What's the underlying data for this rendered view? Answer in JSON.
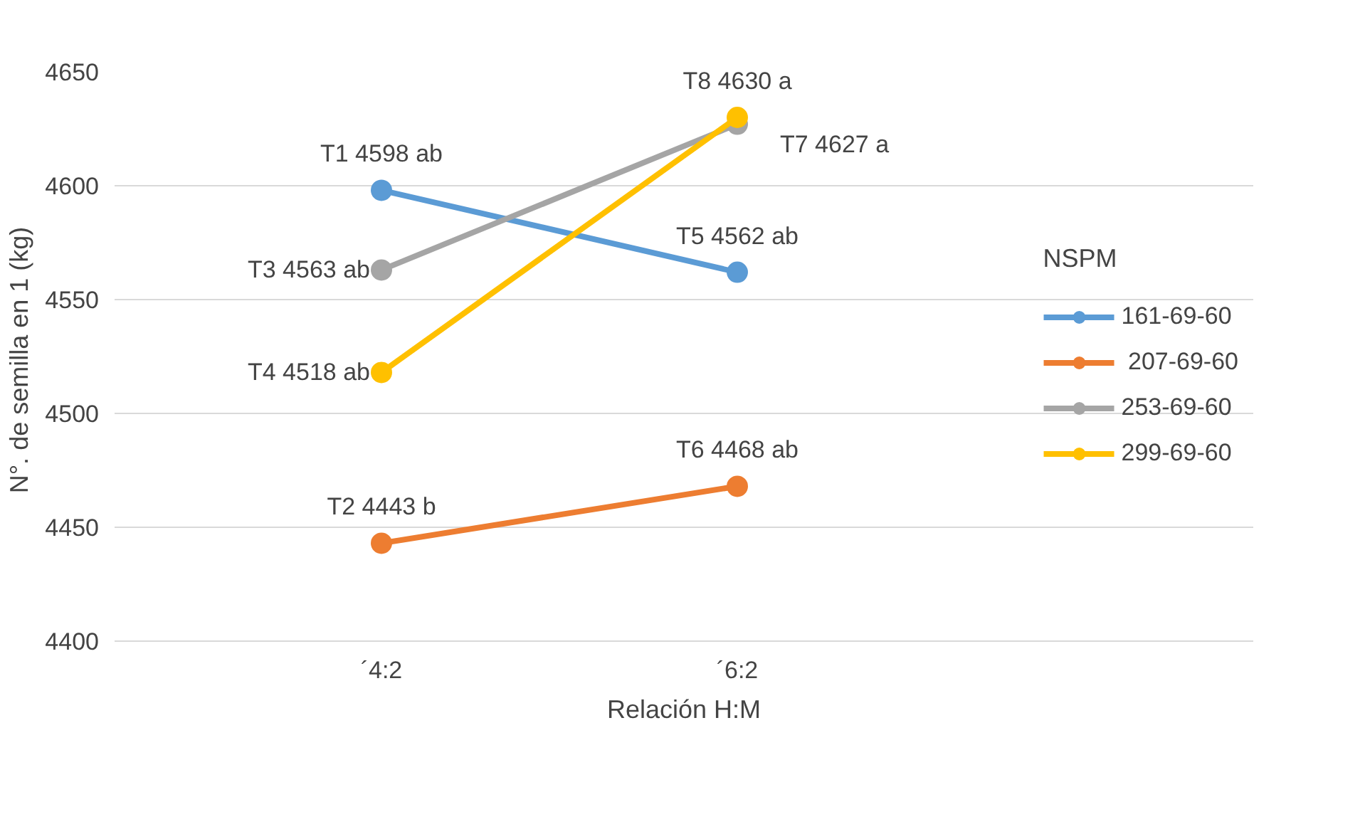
{
  "chart_data": {
    "type": "line",
    "xlabel": "Relación H:M",
    "ylabel": "N°. de semilla en  1 (kg)",
    "legend_title": "NSPM",
    "categories": [
      "´4:2",
      "´6:2"
    ],
    "series": [
      {
        "name": "161-69-60",
        "color": "#5b9bd5",
        "values": [
          4598,
          4562
        ],
        "value_labels": [
          "T1 4598 ab",
          "T5 4562 ab"
        ]
      },
      {
        "name": " 207-69-60",
        "color": "#ed7d31",
        "values": [
          4443,
          4468
        ],
        "value_labels": [
          "T2 4443 b",
          "T6 4468 ab"
        ]
      },
      {
        "name": "253-69-60",
        "color": "#a5a5a5",
        "values": [
          4563,
          4627
        ],
        "value_labels": [
          "T3 4563 ab",
          "T7  4627 a"
        ]
      },
      {
        "name": "299-69-60",
        "color": "#ffc000",
        "values": [
          4518,
          4630
        ],
        "value_labels": [
          "T4 4518 ab",
          "T8 4630 a"
        ]
      }
    ],
    "ylim": [
      4400,
      4650
    ],
    "yticks": [
      4400,
      4450,
      4500,
      4550,
      4600,
      4650
    ],
    "grid": "y",
    "legend": "right",
    "marker": "circle",
    "line_style": "solid"
  }
}
